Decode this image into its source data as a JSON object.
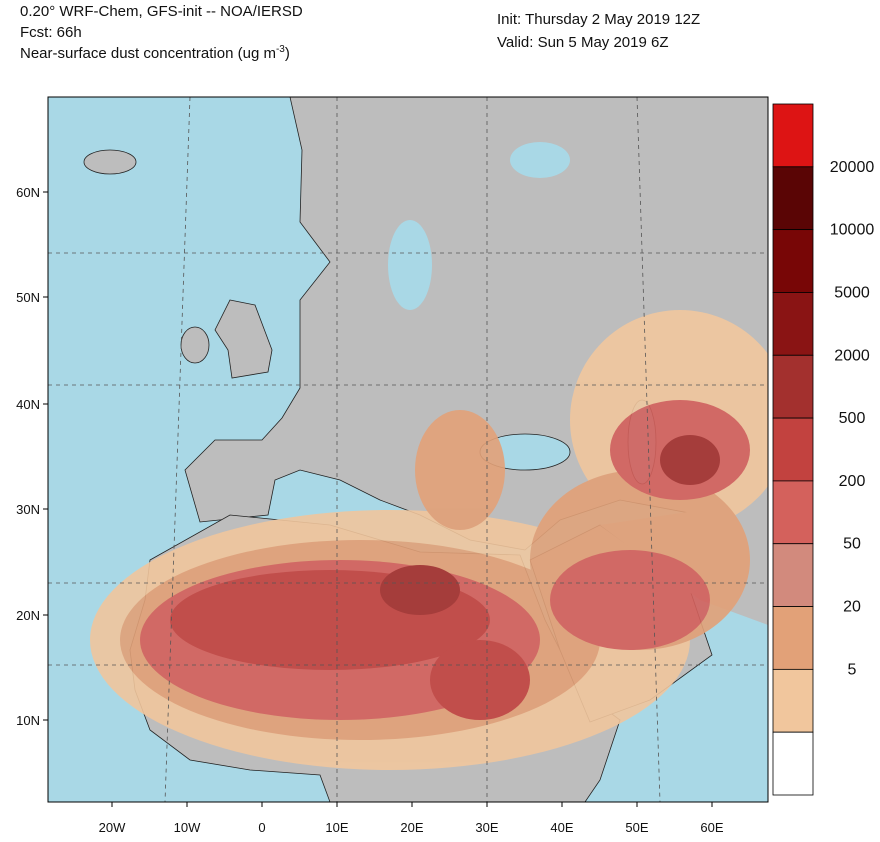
{
  "header": {
    "model": "0.20° WRF-Chem, GFS-init -- NOA/IERSD",
    "forecast": "Fcst: 66h",
    "variable": {
      "prefix": "Near-surface dust concentration (ug m",
      "exponent": "-3",
      "suffix": ")"
    },
    "init": "Init: Thursday 2 May 2019  12Z",
    "valid": "Valid: Sun 5 May 2019  6Z"
  },
  "map": {
    "lat_labels": [
      "60N",
      "50N",
      "40N",
      "30N",
      "20N",
      "10N"
    ],
    "lon_labels": [
      "20W",
      "10W",
      "0",
      "10E",
      "20E",
      "30E",
      "40E",
      "50E",
      "60E"
    ]
  },
  "legend": {
    "levels": [
      20000,
      10000,
      5000,
      2000,
      500,
      200,
      50,
      20,
      5
    ],
    "colors": [
      "#dd1414",
      "#5a0505",
      "#780606",
      "#8a1414",
      "#a3302e",
      "#c2423f",
      "#d4615c",
      "#d28a7d",
      "#e2a178",
      "#f1c69d",
      "#ffffff"
    ]
  }
}
